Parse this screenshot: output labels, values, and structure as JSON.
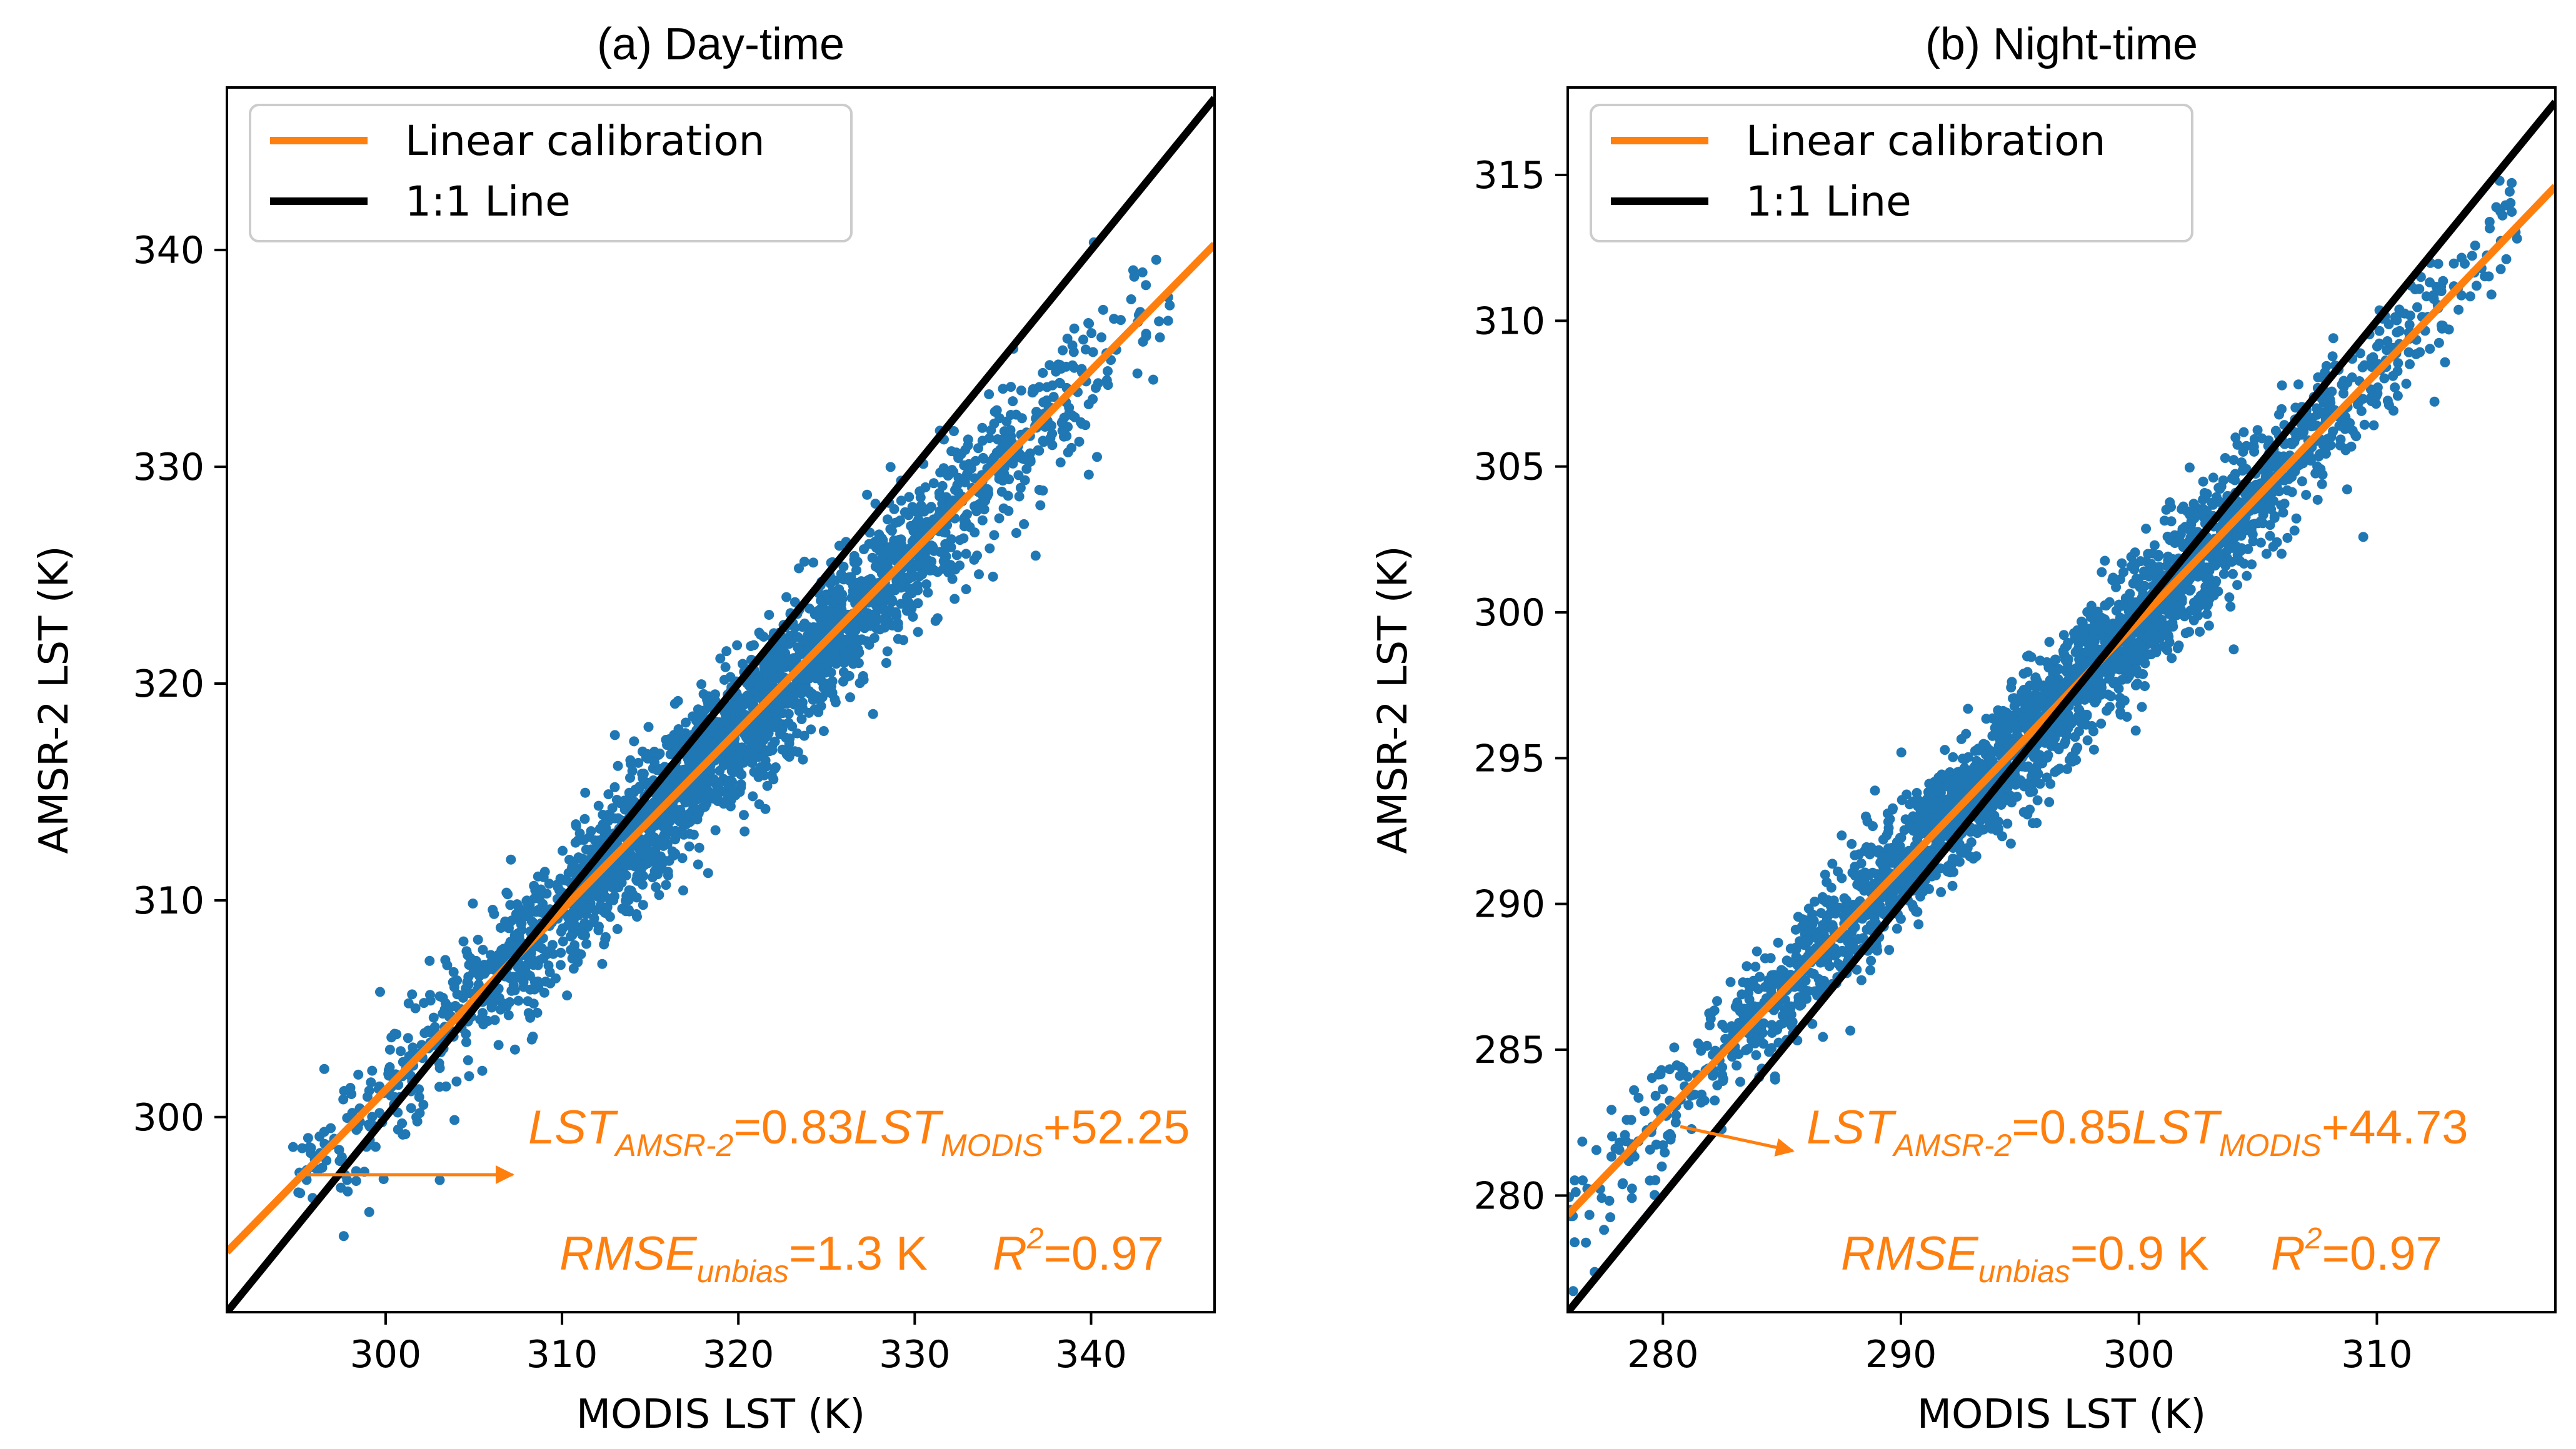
{
  "chart_data": [
    {
      "type": "scatter",
      "title": "(a) Day-time",
      "xlabel": "MODIS LST (K)",
      "ylabel": "AMSR-2 LST (K)",
      "xlim": [
        291,
        347
      ],
      "ylim": [
        291,
        347.5
      ],
      "xticks": [
        300,
        310,
        320,
        330,
        340
      ],
      "yticks": [
        300,
        310,
        320,
        330,
        340
      ],
      "grid": false,
      "legend_position": "top-left",
      "series": [
        {
          "name": "Linear calibration",
          "kind": "line",
          "color": "#ff7f0e",
          "slope": 0.83,
          "intercept": 52.25,
          "x": [
            291,
            347
          ]
        },
        {
          "name": "1:1 Line",
          "kind": "line",
          "color": "#000000",
          "slope": 1.0,
          "intercept": 0.0,
          "x": [
            291,
            347
          ]
        },
        {
          "name": "observations",
          "kind": "scatter",
          "color": "#1f77b4",
          "x_range": [
            294.5,
            344.5
          ],
          "center_line": {
            "slope": 0.83,
            "intercept": 52.25
          },
          "spread_k": 1.6,
          "density": "very dense"
        }
      ],
      "annotations": {
        "equation": {
          "lhs_var": "LST",
          "lhs_sub": "AMSR-2",
          "eq_coef": "=0.83",
          "rhs_var": "LST",
          "rhs_sub": "MODIS",
          "rhs_tail": "+52.25"
        },
        "stats": {
          "rmse_var": "RMSE",
          "rmse_sub": "unbias",
          "rmse_val": "=1.3 K",
          "r2_var": "R",
          "r2_sup": "2",
          "r2_val": "=0.97"
        }
      }
    },
    {
      "type": "scatter",
      "title": "(b) Night-time",
      "xlabel": "MODIS LST (K)",
      "ylabel": "AMSR-2 LST (K)",
      "xlim": [
        276,
        317.5
      ],
      "ylim": [
        276,
        318
      ],
      "xticks": [
        280,
        290,
        300,
        310
      ],
      "yticks": [
        280,
        285,
        290,
        295,
        300,
        305,
        310,
        315
      ],
      "grid": false,
      "legend_position": "top-left",
      "series": [
        {
          "name": "Linear calibration",
          "kind": "line",
          "color": "#ff7f0e",
          "slope": 0.85,
          "intercept": 44.73,
          "x": [
            276,
            317.5
          ]
        },
        {
          "name": "1:1 Line",
          "kind": "line",
          "color": "#000000",
          "slope": 1.0,
          "intercept": 0.0,
          "x": [
            276,
            317.5
          ]
        },
        {
          "name": "observations",
          "kind": "scatter",
          "color": "#1f77b4",
          "x_range": [
            276,
            316
          ],
          "center_line": {
            "slope": 0.85,
            "intercept": 44.73
          },
          "spread_k": 1.1,
          "density": "very dense"
        }
      ],
      "annotations": {
        "equation": {
          "lhs_var": "LST",
          "lhs_sub": "AMSR-2",
          "eq_coef": "=0.85",
          "rhs_var": "LST",
          "rhs_sub": "MODIS",
          "rhs_tail": "+44.73"
        },
        "stats": {
          "rmse_var": "RMSE",
          "rmse_sub": "unbias",
          "rmse_val": "=0.9 K",
          "r2_var": "R",
          "r2_sup": "2",
          "r2_val": "=0.97"
        }
      }
    }
  ]
}
